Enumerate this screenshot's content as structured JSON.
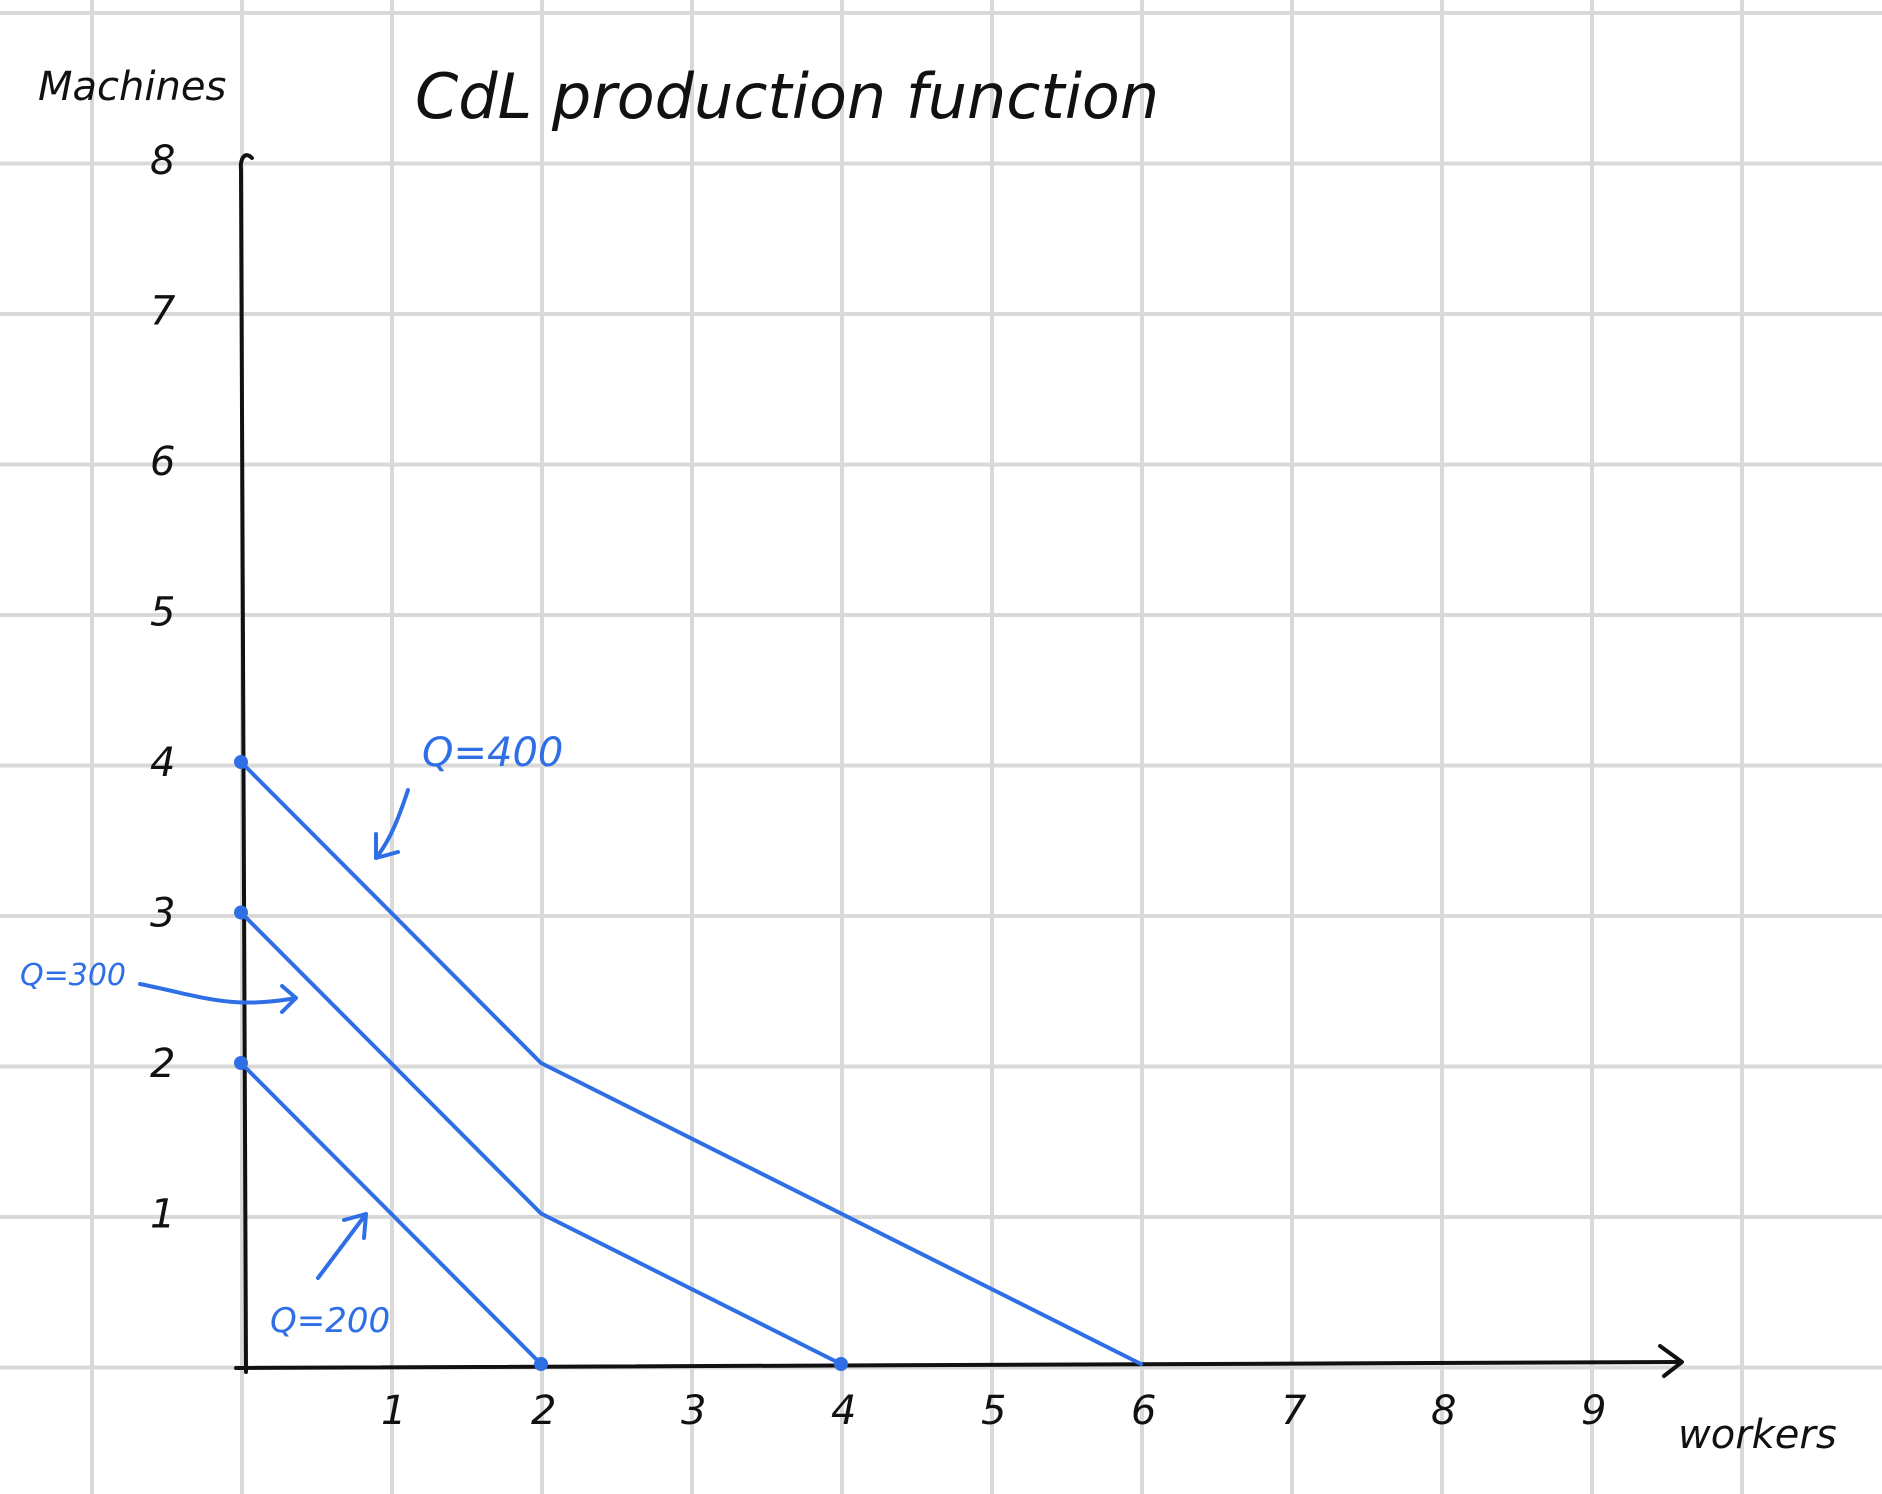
{
  "chart_data": {
    "type": "line",
    "title": "CdL production function",
    "xlabel": "workers",
    "ylabel": "Machines",
    "xlim": [
      0,
      9.5
    ],
    "ylim": [
      0,
      8
    ],
    "x_ticks": [
      "1",
      "2",
      "3",
      "4",
      "5",
      "6",
      "7",
      "8",
      "9"
    ],
    "y_ticks": [
      "1",
      "2",
      "3",
      "4",
      "5",
      "6",
      "7",
      "8"
    ],
    "grid": true,
    "series": [
      {
        "name": "Q=200",
        "points": [
          [
            0,
            2
          ],
          [
            2,
            0
          ]
        ]
      },
      {
        "name": "Q=300",
        "points": [
          [
            0,
            3
          ],
          [
            2,
            1
          ],
          [
            4,
            0
          ]
        ]
      },
      {
        "name": "Q=400",
        "points": [
          [
            0,
            4
          ],
          [
            2,
            2
          ],
          [
            4,
            1
          ],
          [
            6,
            0
          ]
        ]
      }
    ],
    "marked_points": [
      [
        0,
        2
      ],
      [
        0,
        3
      ],
      [
        0,
        4
      ],
      [
        2,
        0
      ],
      [
        4,
        0
      ]
    ],
    "colors": {
      "ink": "#111111",
      "isoquant": "#2f6fe6",
      "grid": "#d9d9d9"
    }
  }
}
